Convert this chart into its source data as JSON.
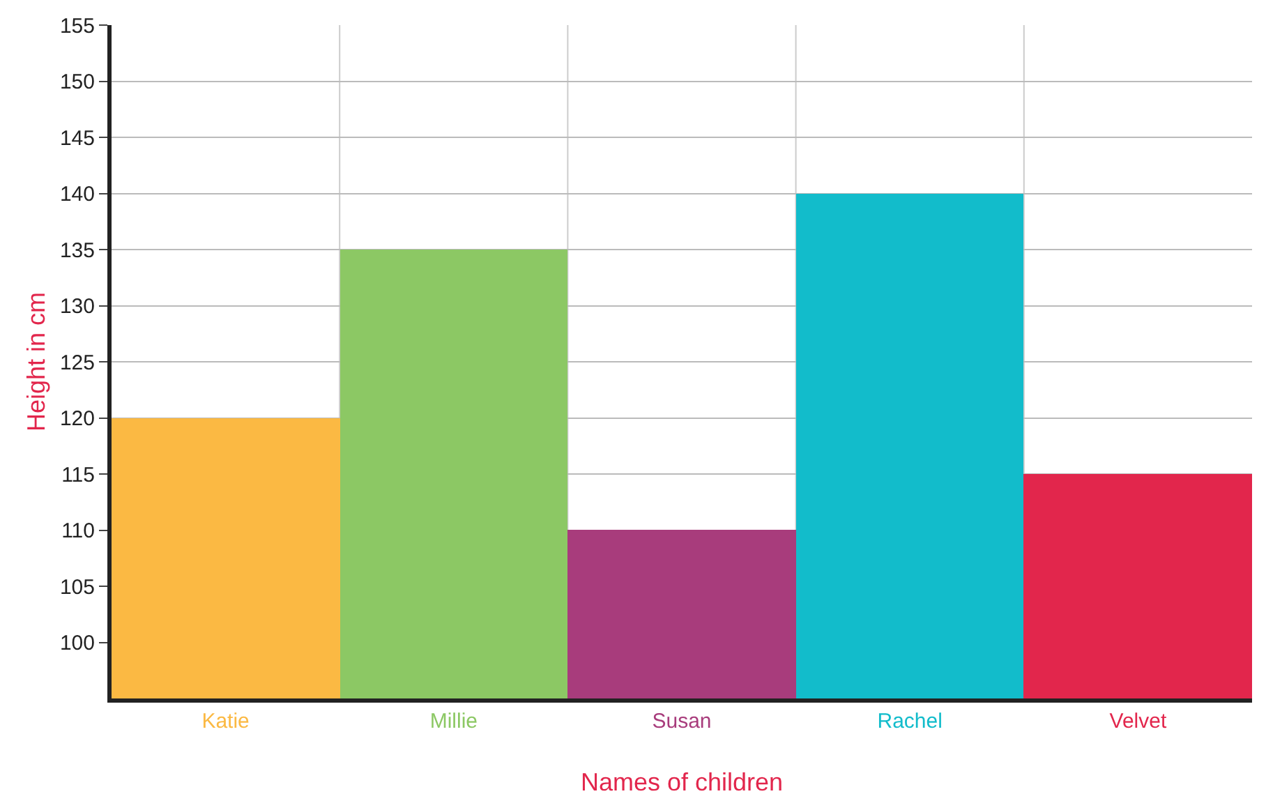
{
  "chart_data": {
    "type": "bar",
    "xlabel": "Names of children",
    "ylabel": "Height in cm",
    "categories": [
      "Katie",
      "Millie",
      "Susan",
      "Rachel",
      "Velvet"
    ],
    "values": [
      120,
      135,
      110,
      140,
      115
    ],
    "colors": [
      "#fbb943",
      "#8cc864",
      "#a83c7c",
      "#12bccb",
      "#e2264c"
    ],
    "ylim": [
      95,
      155
    ],
    "yticks": [
      100,
      105,
      110,
      115,
      120,
      125,
      130,
      135,
      140,
      145,
      150,
      155
    ],
    "grid": true
  }
}
